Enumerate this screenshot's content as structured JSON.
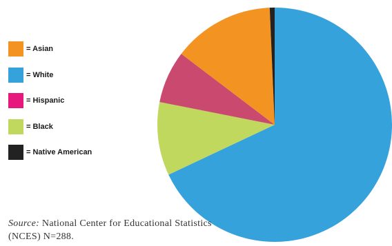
{
  "chart_data": {
    "type": "pie",
    "title": "",
    "legend_position": "left",
    "slices": [
      {
        "label": "= White",
        "value": 70.5,
        "color": "#36a2dc"
      },
      {
        "label": "= Black",
        "value": 10.5,
        "color": "#c0d85e"
      },
      {
        "label": "= Hispanic",
        "value": 7.5,
        "color": "#c94a6e"
      },
      {
        "label": "= Asian",
        "value": 14.5,
        "color": "#f39422"
      },
      {
        "label": "= Native American",
        "value": 0.7,
        "color": "#222222"
      }
    ],
    "legend": [
      {
        "label": "= Asian",
        "color": "#f39422"
      },
      {
        "label": "= White",
        "color": "#36a2dc"
      },
      {
        "label": "= Hispanic",
        "color": "#e6177d"
      },
      {
        "label": "= Black",
        "color": "#c0d85e"
      },
      {
        "label": "= Native American",
        "color": "#222222"
      }
    ]
  },
  "source": {
    "label": "Source:",
    "text": " National Center for Educational Statistics (NCES) N=288."
  }
}
